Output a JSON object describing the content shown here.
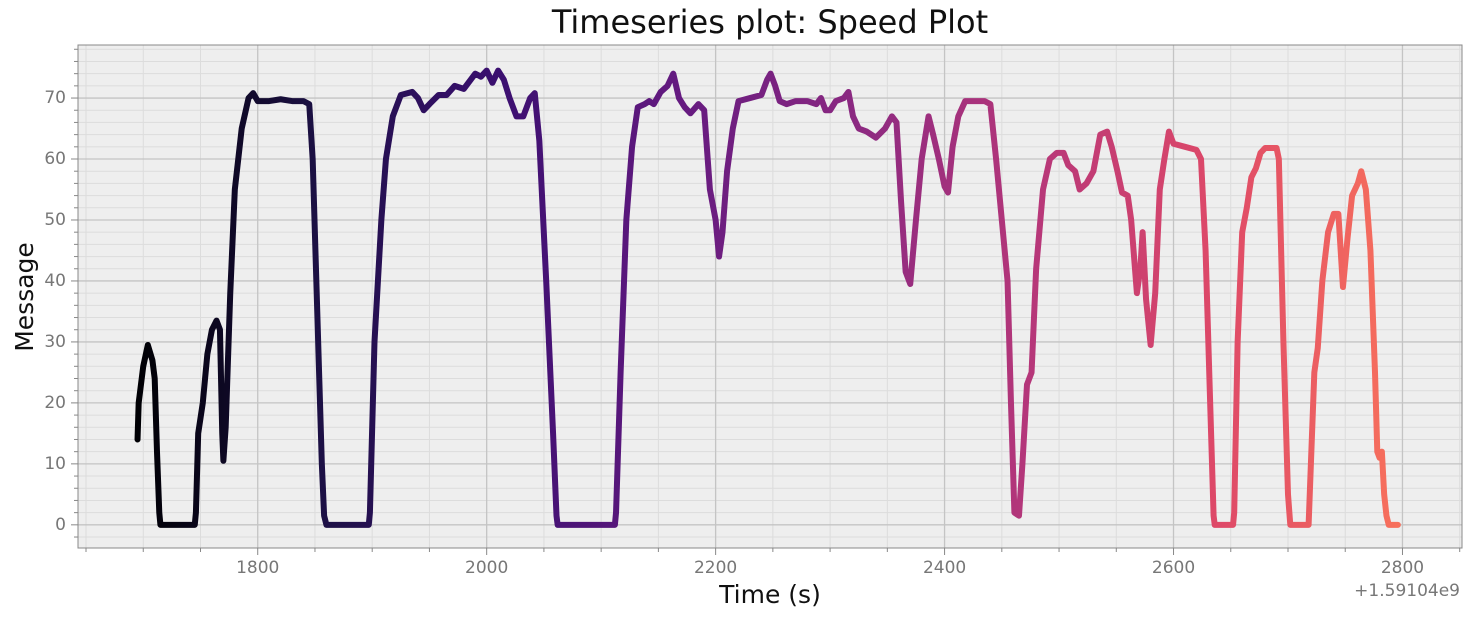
{
  "chart_data": {
    "type": "line",
    "title": "Timeseries plot: Speed Plot",
    "x_label": "Time (s)",
    "y_label": "Message",
    "x_offset_label": "+1.59104e9",
    "colormap": [
      "#000004",
      "#1c1044",
      "#3b0f70",
      "#641a80",
      "#8c2981",
      "#b73779",
      "#de4968",
      "#f7705c"
    ],
    "grid": true,
    "xlim": [
      1643,
      2852
    ],
    "ylim": [
      -3.8,
      78.7
    ],
    "xticks": [
      1800,
      2000,
      2200,
      2400,
      2600,
      2800
    ],
    "yticks": [
      0,
      10,
      20,
      30,
      40,
      50,
      60,
      70
    ],
    "xminorticks": [
      1650,
      1700,
      1750,
      1850,
      1900,
      1950,
      2050,
      2100,
      2150,
      2250,
      2300,
      2350,
      2450,
      2500,
      2550,
      2650,
      2700,
      2750,
      2850
    ],
    "yminorticks": [
      -2,
      2,
      4,
      6,
      8,
      12,
      14,
      16,
      18,
      22,
      24,
      26,
      28,
      32,
      34,
      36,
      38,
      42,
      44,
      46,
      48,
      52,
      54,
      56,
      58,
      62,
      64,
      66,
      68,
      72,
      74,
      76,
      78
    ],
    "x": [
      1695,
      1696,
      1700,
      1704,
      1708,
      1710,
      1712,
      1714,
      1715,
      1745,
      1746,
      1748,
      1752,
      1756,
      1760,
      1764,
      1767,
      1769,
      1770,
      1772,
      1776,
      1780,
      1786,
      1792,
      1796,
      1800,
      1810,
      1820,
      1830,
      1840,
      1845,
      1848,
      1852,
      1856,
      1858,
      1860,
      1897,
      1898,
      1902,
      1908,
      1912,
      1918,
      1925,
      1935,
      1940,
      1945,
      1950,
      1958,
      1965,
      1972,
      1980,
      1990,
      1995,
      2000,
      2005,
      2010,
      2015,
      2020,
      2026,
      2032,
      2038,
      2042,
      2046,
      2052,
      2058,
      2061,
      2062,
      2112,
      2113,
      2117,
      2122,
      2127,
      2132,
      2138,
      2142,
      2146,
      2152,
      2158,
      2163,
      2168,
      2173,
      2178,
      2185,
      2190,
      2195,
      2200,
      2203,
      2206,
      2210,
      2215,
      2220,
      2230,
      2240,
      2245,
      2248,
      2252,
      2256,
      2262,
      2270,
      2280,
      2288,
      2292,
      2296,
      2300,
      2305,
      2312,
      2316,
      2320,
      2325,
      2332,
      2340,
      2348,
      2354,
      2358,
      2362,
      2366,
      2370,
      2375,
      2380,
      2386,
      2390,
      2395,
      2400,
      2403,
      2407,
      2412,
      2418,
      2425,
      2435,
      2440,
      2445,
      2450,
      2455,
      2458,
      2461,
      2465,
      2468,
      2472,
      2476,
      2480,
      2486,
      2492,
      2498,
      2504,
      2508,
      2514,
      2518,
      2524,
      2530,
      2536,
      2542,
      2546,
      2551,
      2555,
      2560,
      2563,
      2568,
      2571,
      2573,
      2576,
      2580,
      2584,
      2588,
      2592,
      2596,
      2600,
      2610,
      2620,
      2624,
      2628,
      2632,
      2635,
      2636,
      2652,
      2653,
      2656,
      2660,
      2664,
      2668,
      2672,
      2676,
      2680,
      2690,
      2692,
      2696,
      2700,
      2702,
      2718,
      2719,
      2723,
      2726,
      2730,
      2735,
      2740,
      2744,
      2746,
      2748,
      2752,
      2756,
      2761,
      2764,
      2768,
      2772,
      2776,
      2778,
      2780,
      2782,
      2784,
      2786,
      2788,
      2796
    ],
    "values": [
      14,
      20,
      26,
      29.5,
      27,
      24,
      12,
      2,
      0,
      0,
      2,
      15,
      20,
      28,
      32,
      33.5,
      32,
      15,
      10.5,
      16,
      38,
      55,
      65,
      70,
      70.8,
      69.5,
      69.5,
      69.8,
      69.5,
      69.5,
      69,
      60,
      35,
      10,
      1.5,
      0,
      0,
      2,
      30,
      50,
      60,
      67,
      70.5,
      71,
      70,
      68,
      69,
      70.5,
      70.5,
      72,
      71.5,
      74,
      73.5,
      74.5,
      72.5,
      74.5,
      73,
      70,
      67,
      67,
      70,
      70.8,
      63,
      40,
      15,
      1.5,
      0,
      0,
      2,
      25,
      50,
      62,
      68.5,
      69,
      69.5,
      69,
      71,
      72,
      74,
      70,
      68.5,
      67.5,
      69,
      68,
      55,
      50,
      44,
      48,
      58,
      65,
      69.5,
      70,
      70.5,
      73,
      74,
      72,
      69.5,
      69,
      69.5,
      69.5,
      69,
      70,
      68,
      68,
      69.5,
      70,
      71,
      67,
      65,
      64.5,
      63.5,
      65,
      67,
      66,
      53,
      41.5,
      39.5,
      50,
      60,
      67,
      64,
      60,
      55.5,
      54.5,
      62,
      67,
      69.5,
      69.5,
      69.5,
      69,
      60,
      50,
      40,
      20,
      2,
      1.5,
      10,
      23,
      25,
      42,
      55,
      60,
      61,
      61,
      59,
      58,
      55,
      56,
      58,
      64,
      64.5,
      62,
      58,
      54.5,
      54,
      50,
      38,
      42,
      48,
      37,
      29.5,
      38,
      55,
      60,
      64.5,
      62.5,
      62,
      61.5,
      60,
      45,
      20,
      1.5,
      0,
      0,
      2,
      30,
      48,
      52,
      57,
      58.5,
      61,
      61.8,
      61.8,
      60,
      30,
      5,
      0,
      0,
      5,
      25,
      29,
      40,
      48,
      51,
      51,
      45,
      39,
      47,
      54,
      56,
      58,
      55,
      45,
      25,
      12,
      11,
      12,
      5,
      1.5,
      0,
      0
    ]
  }
}
